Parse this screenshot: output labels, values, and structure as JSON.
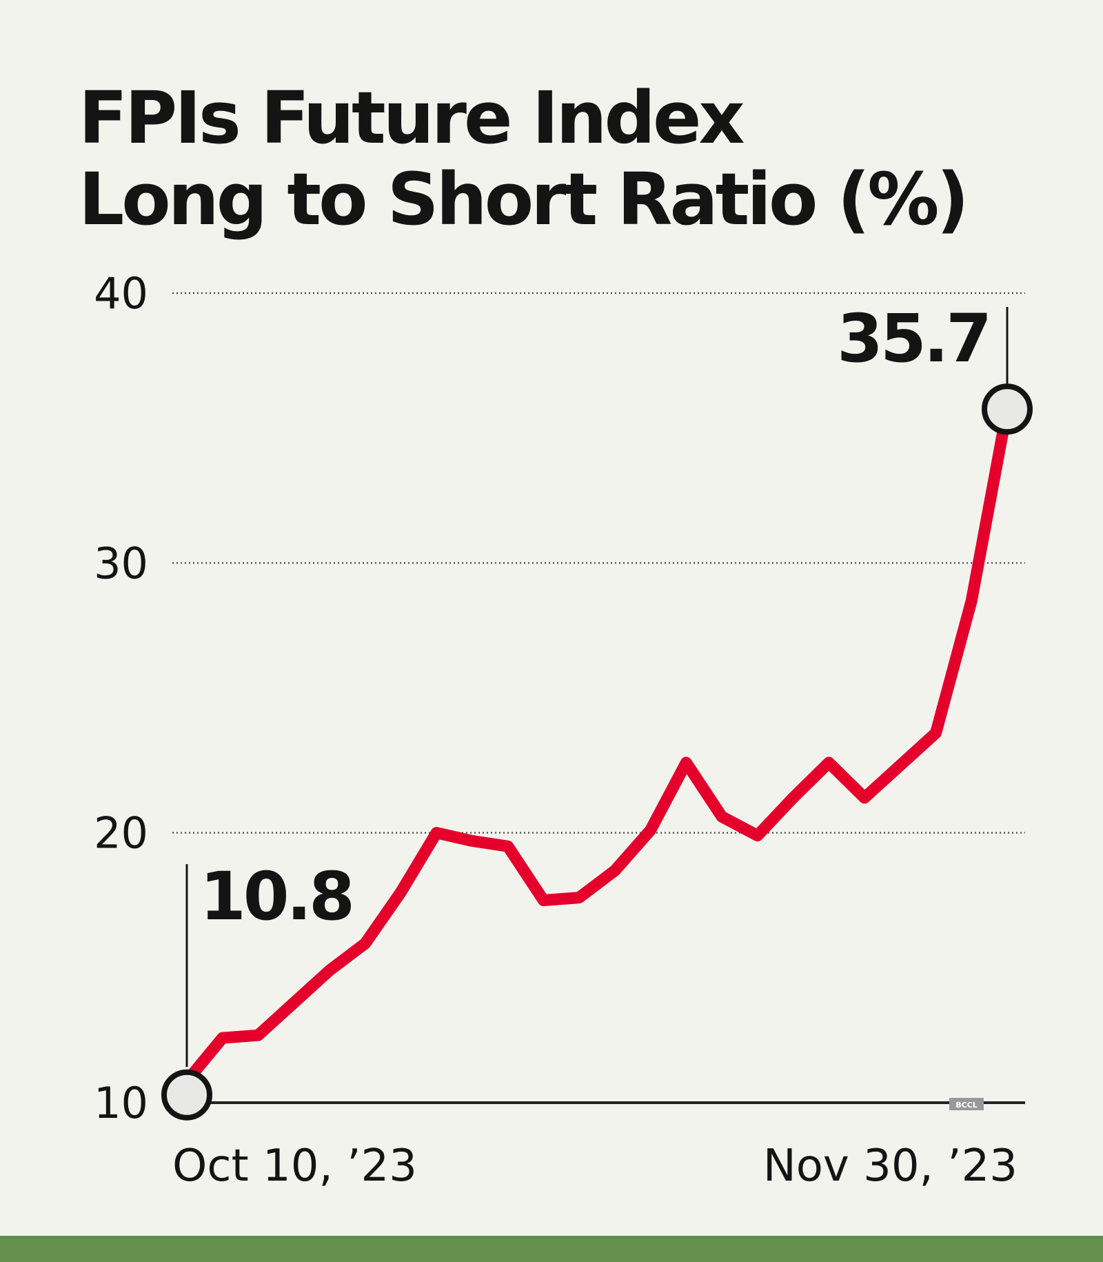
{
  "chart_data": {
    "type": "line",
    "title_lines": [
      "FPIs Future Index",
      "Long to Short Ratio (%)"
    ],
    "xlabel": "",
    "ylabel": "",
    "x_tick_labels": [
      "Oct 10, ’23",
      "Nov 30, ’23"
    ],
    "y_ticks": [
      10,
      20,
      30,
      40
    ],
    "ylim": [
      10,
      40
    ],
    "grid": "dotted horizontal",
    "values": [
      10.8,
      12.4,
      12.5,
      13.7,
      14.9,
      15.9,
      17.8,
      20.0,
      19.7,
      19.5,
      17.5,
      17.6,
      18.6,
      20.1,
      22.6,
      20.6,
      19.9,
      21.3,
      22.6,
      21.3,
      22.5,
      23.7,
      28.6,
      35.7
    ],
    "annotations": [
      {
        "label": "10.8",
        "point": "first"
      },
      {
        "label": "35.7",
        "point": "last"
      }
    ],
    "line_color": "#e4002b",
    "watermark": "BCCL"
  },
  "colors": {
    "background": "#f3f3ee",
    "text": "#141414",
    "footer_band": "#64904e"
  }
}
